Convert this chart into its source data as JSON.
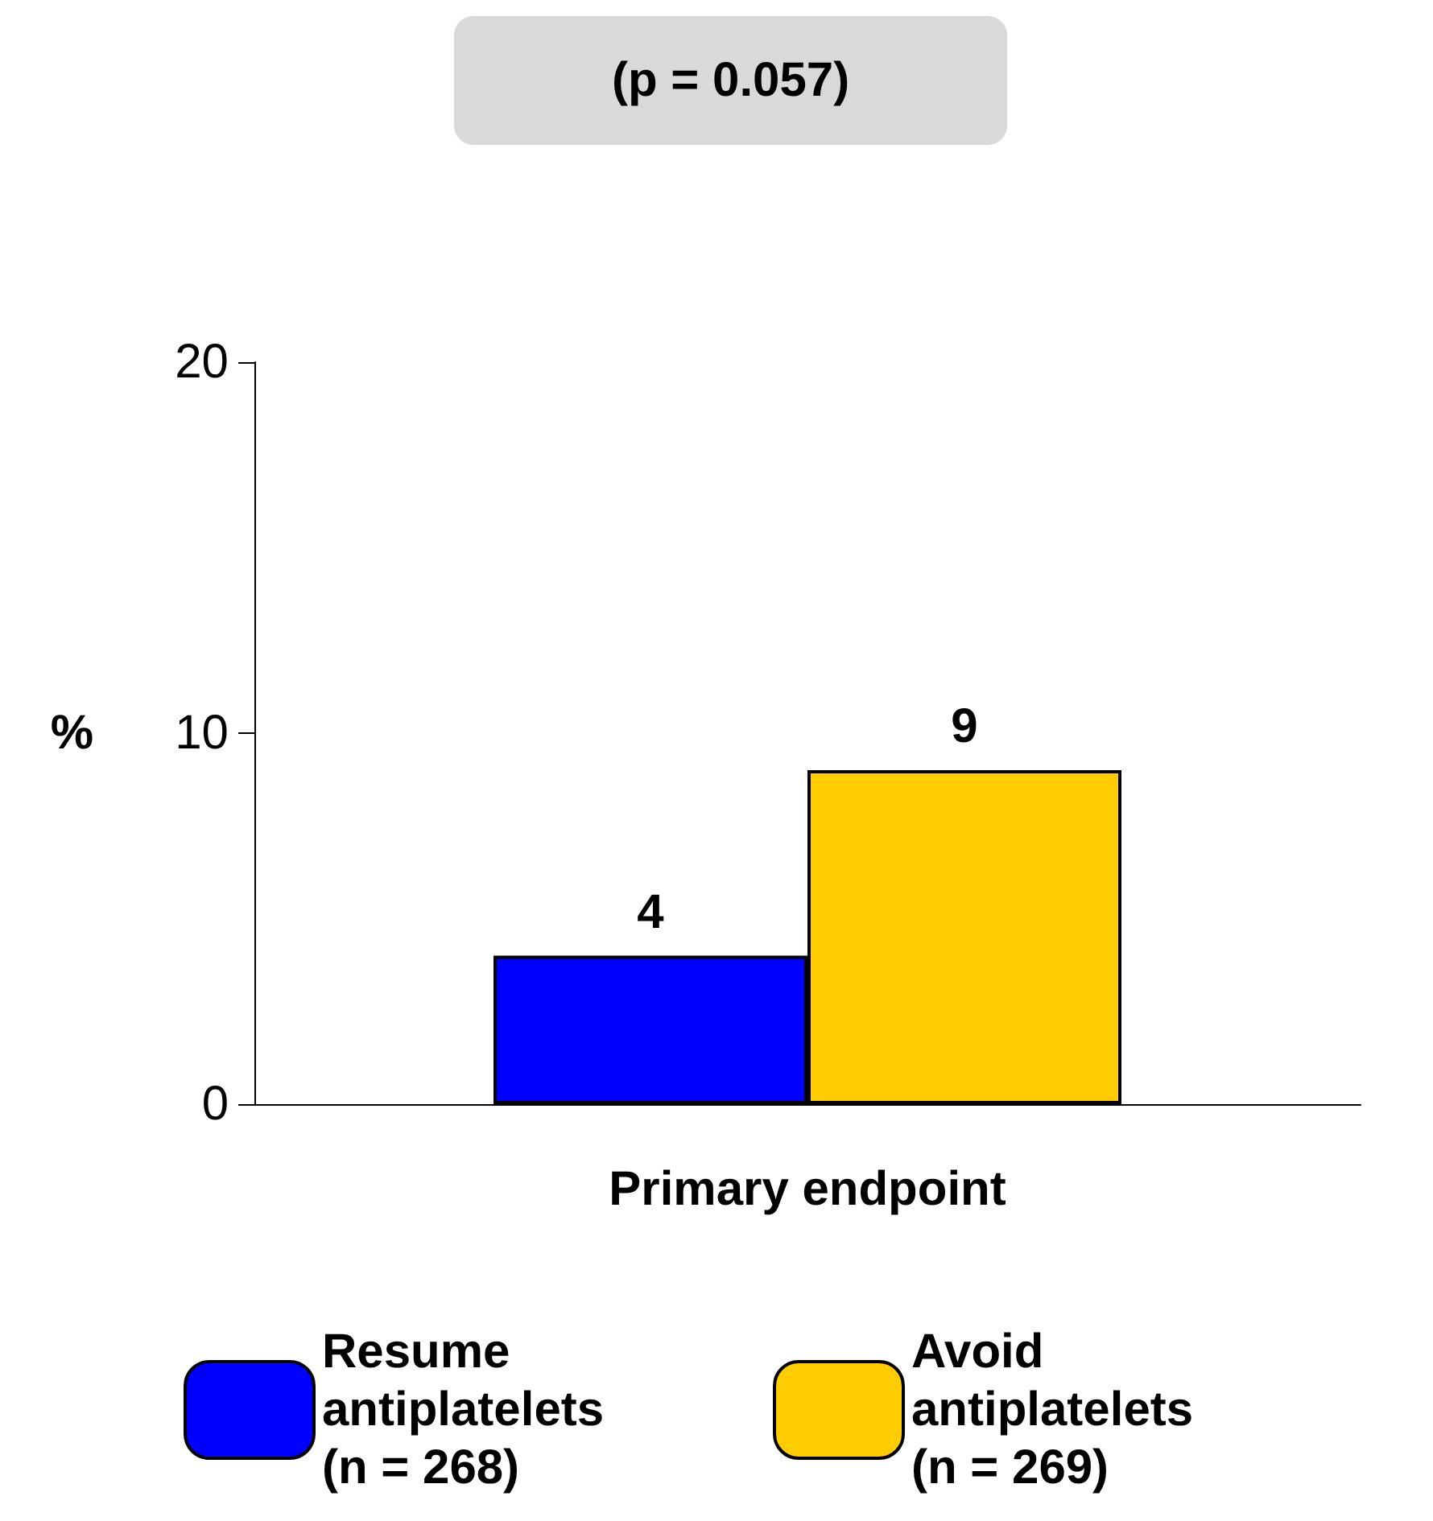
{
  "chart_data": {
    "type": "bar",
    "title": "(p = 0.057)",
    "ylabel": "%",
    "categories": [
      "Primary endpoint"
    ],
    "series": [
      {
        "name": "Resume antiplatelets (n = 268)",
        "color": "#0000ff",
        "values": [
          4
        ]
      },
      {
        "name": "Avoid antiplatelets (n = 269)",
        "color": "#ffcc00",
        "values": [
          9
        ]
      }
    ],
    "ylim": [
      0,
      20
    ],
    "yticks": [
      0,
      10,
      20
    ],
    "grid": false,
    "legend": "bottom",
    "data_labels": true
  }
}
